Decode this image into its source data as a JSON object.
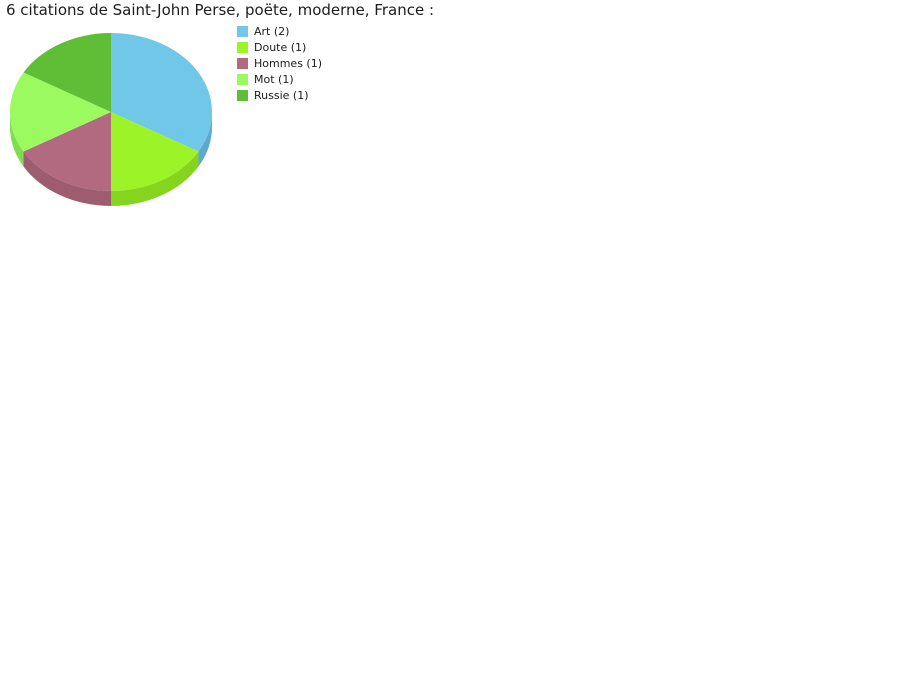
{
  "title": "6 citations de Saint-John Perse, poëte, moderne, France :",
  "chart_data": {
    "type": "pie",
    "style": "3d",
    "title": "6 citations de Saint-John Perse, poëte, moderne, France :",
    "total": 6,
    "start_angle_deg_clockwise_from_top": 0,
    "legend_position": "right",
    "slices": [
      {
        "label": "Art",
        "value": 2,
        "legend_label": "Art (2)",
        "color": "#70C7E8",
        "side_color": "#5EA9C9"
      },
      {
        "label": "Doute",
        "value": 1,
        "legend_label": "Doute (1)",
        "color": "#9CF327",
        "side_color": "#85D51F"
      },
      {
        "label": "Hommes",
        "value": 1,
        "legend_label": "Hommes (1)",
        "color": "#B16A80",
        "side_color": "#9E5C71"
      },
      {
        "label": "Mot",
        "value": 1,
        "legend_label": "Mot (1)",
        "color": "#9CFA61",
        "side_color": "#83DC50"
      },
      {
        "label": "Russie",
        "value": 1,
        "legend_label": "Russie (1)",
        "color": "#60BE36",
        "side_color": "#4FA02B"
      }
    ]
  }
}
